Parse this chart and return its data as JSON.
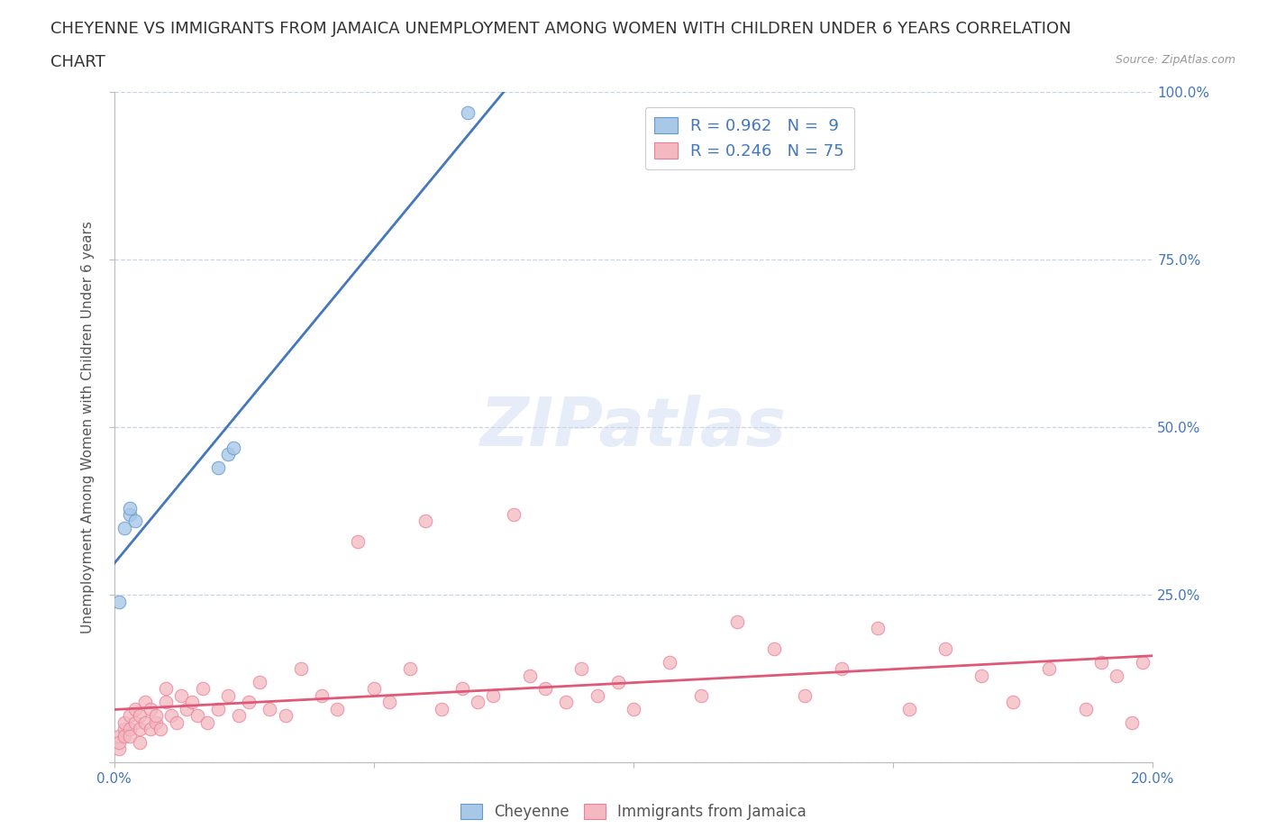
{
  "title_line1": "CHEYENNE VS IMMIGRANTS FROM JAMAICA UNEMPLOYMENT AMONG WOMEN WITH CHILDREN UNDER 6 YEARS CORRELATION",
  "title_line2": "CHART",
  "source_text": "Source: ZipAtlas.com",
  "ylabel": "Unemployment Among Women with Children Under 6 years",
  "xlim": [
    0.0,
    0.2
  ],
  "ylim": [
    0.0,
    1.0
  ],
  "blue_color": "#a8c8e8",
  "blue_edge_color": "#6699cc",
  "blue_line_color": "#4477bb",
  "pink_color": "#f4b8c0",
  "pink_edge_color": "#e8809a",
  "pink_line_color": "#e05878",
  "text_color": "#4477bb",
  "watermark": "ZIPatlas",
  "legend_r1": "R = 0.962",
  "legend_n1": "N =  9",
  "legend_r2": "R = 0.246",
  "legend_n2": "N = 75",
  "cheyenne_x": [
    0.001,
    0.002,
    0.003,
    0.003,
    0.004,
    0.02,
    0.022,
    0.023,
    0.068
  ],
  "cheyenne_y": [
    0.24,
    0.35,
    0.37,
    0.38,
    0.36,
    0.44,
    0.46,
    0.47,
    0.97
  ],
  "jamaica_x": [
    0.001,
    0.001,
    0.001,
    0.002,
    0.002,
    0.002,
    0.003,
    0.003,
    0.003,
    0.004,
    0.004,
    0.005,
    0.005,
    0.005,
    0.006,
    0.006,
    0.007,
    0.007,
    0.008,
    0.008,
    0.009,
    0.01,
    0.01,
    0.011,
    0.012,
    0.013,
    0.014,
    0.015,
    0.016,
    0.017,
    0.018,
    0.02,
    0.022,
    0.024,
    0.026,
    0.028,
    0.03,
    0.033,
    0.036,
    0.04,
    0.043,
    0.047,
    0.05,
    0.053,
    0.057,
    0.06,
    0.063,
    0.067,
    0.07,
    0.073,
    0.077,
    0.08,
    0.083,
    0.087,
    0.09,
    0.093,
    0.097,
    0.1,
    0.107,
    0.113,
    0.12,
    0.127,
    0.133,
    0.14,
    0.147,
    0.153,
    0.16,
    0.167,
    0.173,
    0.18,
    0.187,
    0.19,
    0.193,
    0.196,
    0.198
  ],
  "jamaica_y": [
    0.04,
    0.02,
    0.03,
    0.05,
    0.06,
    0.04,
    0.07,
    0.05,
    0.04,
    0.06,
    0.08,
    0.05,
    0.07,
    0.03,
    0.09,
    0.06,
    0.05,
    0.08,
    0.06,
    0.07,
    0.05,
    0.09,
    0.11,
    0.07,
    0.06,
    0.1,
    0.08,
    0.09,
    0.07,
    0.11,
    0.06,
    0.08,
    0.1,
    0.07,
    0.09,
    0.12,
    0.08,
    0.07,
    0.14,
    0.1,
    0.08,
    0.33,
    0.11,
    0.09,
    0.14,
    0.36,
    0.08,
    0.11,
    0.09,
    0.1,
    0.37,
    0.13,
    0.11,
    0.09,
    0.14,
    0.1,
    0.12,
    0.08,
    0.15,
    0.1,
    0.21,
    0.17,
    0.1,
    0.14,
    0.2,
    0.08,
    0.17,
    0.13,
    0.09,
    0.14,
    0.08,
    0.15,
    0.13,
    0.06,
    0.15
  ],
  "background_color": "#ffffff",
  "grid_color": "#c8d4e8",
  "title_fontsize": 13,
  "axis_label_fontsize": 11,
  "tick_fontsize": 11
}
